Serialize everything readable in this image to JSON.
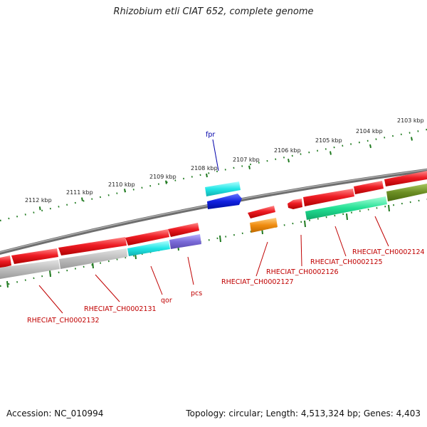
{
  "title": "Rhizobium etli CIAT 652, complete genome",
  "footer": {
    "accession": "Accession: NC_010994",
    "stats": "Topology: circular; Length: 4,513,324 bp; Genes: 4,403"
  },
  "ticks": [
    "2103 kbp",
    "2104 kbp",
    "2105 kbp",
    "2106 kbp",
    "2107 kbp",
    "2108 kbp",
    "2109 kbp",
    "2110 kbp",
    "2111 kbp",
    "2112 kbp"
  ],
  "labels": {
    "fpr": "fpr",
    "qor": "qor",
    "pcs": "pcs",
    "ch2124": "RHECIAT_CH0002124",
    "ch2125": "RHECIAT_CH0002125",
    "ch2126": "RHECIAT_CH0002126",
    "ch2127": "RHECIAT_CH0002127",
    "ch2131": "RHECIAT_CH0002131",
    "ch2132": "RHECIAT_CH0002132"
  },
  "colors": {
    "backbone": "#7a7a7a",
    "tick": "#1f7a1f",
    "cds_red": "#e8141c",
    "cds_gray": "#b4b4b4",
    "cds_cyan": "#22e0e0",
    "cds_purple": "#7a6ad8",
    "cds_blue": "#1020e0",
    "cds_orange": "#f08c10",
    "cds_green": "#20e090",
    "cds_olive": "#6b8e23",
    "label_red": "#c00000",
    "label_blue": "#0000aa"
  }
}
